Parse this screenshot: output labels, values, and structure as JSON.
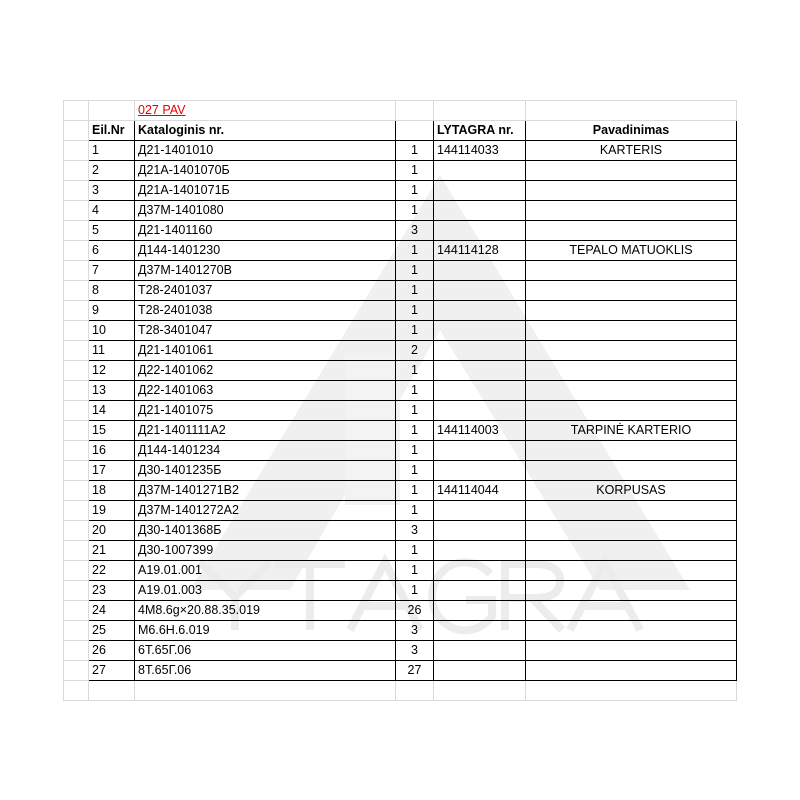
{
  "sheet_title": "027 PAV",
  "headers": {
    "no": "Eil.Nr",
    "catalog": "Kataloginis nr.",
    "qty": "",
    "lytagra": "LYTAGRA nr.",
    "name": "Pavadinimas"
  },
  "watermark_text": "YTAGRA",
  "rows": [
    {
      "no": "1",
      "catalog": "Д21-1401010",
      "qty": "1",
      "lytagra": "144114033",
      "name": "KARTERIS"
    },
    {
      "no": "2",
      "catalog": "Д21А-1401070Б",
      "qty": "1",
      "lytagra": "",
      "name": ""
    },
    {
      "no": "3",
      "catalog": "Д21А-1401071Б",
      "qty": "1",
      "lytagra": "",
      "name": ""
    },
    {
      "no": "4",
      "catalog": "Д37М-1401080",
      "qty": "1",
      "lytagra": "",
      "name": ""
    },
    {
      "no": "5",
      "catalog": "Д21-1401160",
      "qty": "3",
      "lytagra": "",
      "name": ""
    },
    {
      "no": "6",
      "catalog": "Д144-1401230",
      "qty": "1",
      "lytagra": "144114128",
      "name": "TEPALO MATUOKLIS"
    },
    {
      "no": "7",
      "catalog": "Д37М-1401270В",
      "qty": "1",
      "lytagra": "",
      "name": ""
    },
    {
      "no": "8",
      "catalog": "Т28-2401037",
      "qty": "1",
      "lytagra": "",
      "name": ""
    },
    {
      "no": "9",
      "catalog": "Т28-2401038",
      "qty": "1",
      "lytagra": "",
      "name": ""
    },
    {
      "no": "10",
      "catalog": "Т28-3401047",
      "qty": "1",
      "lytagra": "",
      "name": ""
    },
    {
      "no": "11",
      "catalog": "Д21-1401061",
      "qty": "2",
      "lytagra": "",
      "name": ""
    },
    {
      "no": "12",
      "catalog": "Д22-1401062",
      "qty": "1",
      "lytagra": "",
      "name": ""
    },
    {
      "no": "13",
      "catalog": "Д22-1401063",
      "qty": "1",
      "lytagra": "",
      "name": ""
    },
    {
      "no": "14",
      "catalog": "Д21-1401075",
      "qty": "1",
      "lytagra": "",
      "name": ""
    },
    {
      "no": "15",
      "catalog": "Д21-1401111А2",
      "qty": "1",
      "lytagra": "144114003",
      "name": "TARPINĖ KARTERIO"
    },
    {
      "no": "16",
      "catalog": "Д144-1401234",
      "qty": "1",
      "lytagra": "",
      "name": ""
    },
    {
      "no": "17",
      "catalog": "Д30-1401235Б",
      "qty": "1",
      "lytagra": "",
      "name": ""
    },
    {
      "no": "18",
      "catalog": "Д37М-1401271В2",
      "qty": "1",
      "lytagra": "144114044",
      "name": "KORPUSAS"
    },
    {
      "no": "19",
      "catalog": "Д37М-1401272А2",
      "qty": "1",
      "lytagra": "",
      "name": ""
    },
    {
      "no": "20",
      "catalog": "Д30-1401368Б",
      "qty": "3",
      "lytagra": "",
      "name": ""
    },
    {
      "no": "21",
      "catalog": "Д30-1007399",
      "qty": "1",
      "lytagra": "",
      "name": ""
    },
    {
      "no": "22",
      "catalog": "А19.01.001",
      "qty": "1",
      "lytagra": "",
      "name": ""
    },
    {
      "no": "23",
      "catalog": "А19.01.003",
      "qty": "1",
      "lytagra": "",
      "name": ""
    },
    {
      "no": "24",
      "catalog": "4М8.6g×20.88.35.019",
      "qty": "26",
      "lytagra": "",
      "name": ""
    },
    {
      "no": "25",
      "catalog": "М6.6Н.6.019",
      "qty": "3",
      "lytagra": "",
      "name": ""
    },
    {
      "no": "26",
      "catalog": "6Т.65Г.06",
      "qty": "3",
      "lytagra": "",
      "name": ""
    },
    {
      "no": "27",
      "catalog": "8Т.65Г.06",
      "qty": "27",
      "lytagra": "",
      "name": ""
    }
  ]
}
